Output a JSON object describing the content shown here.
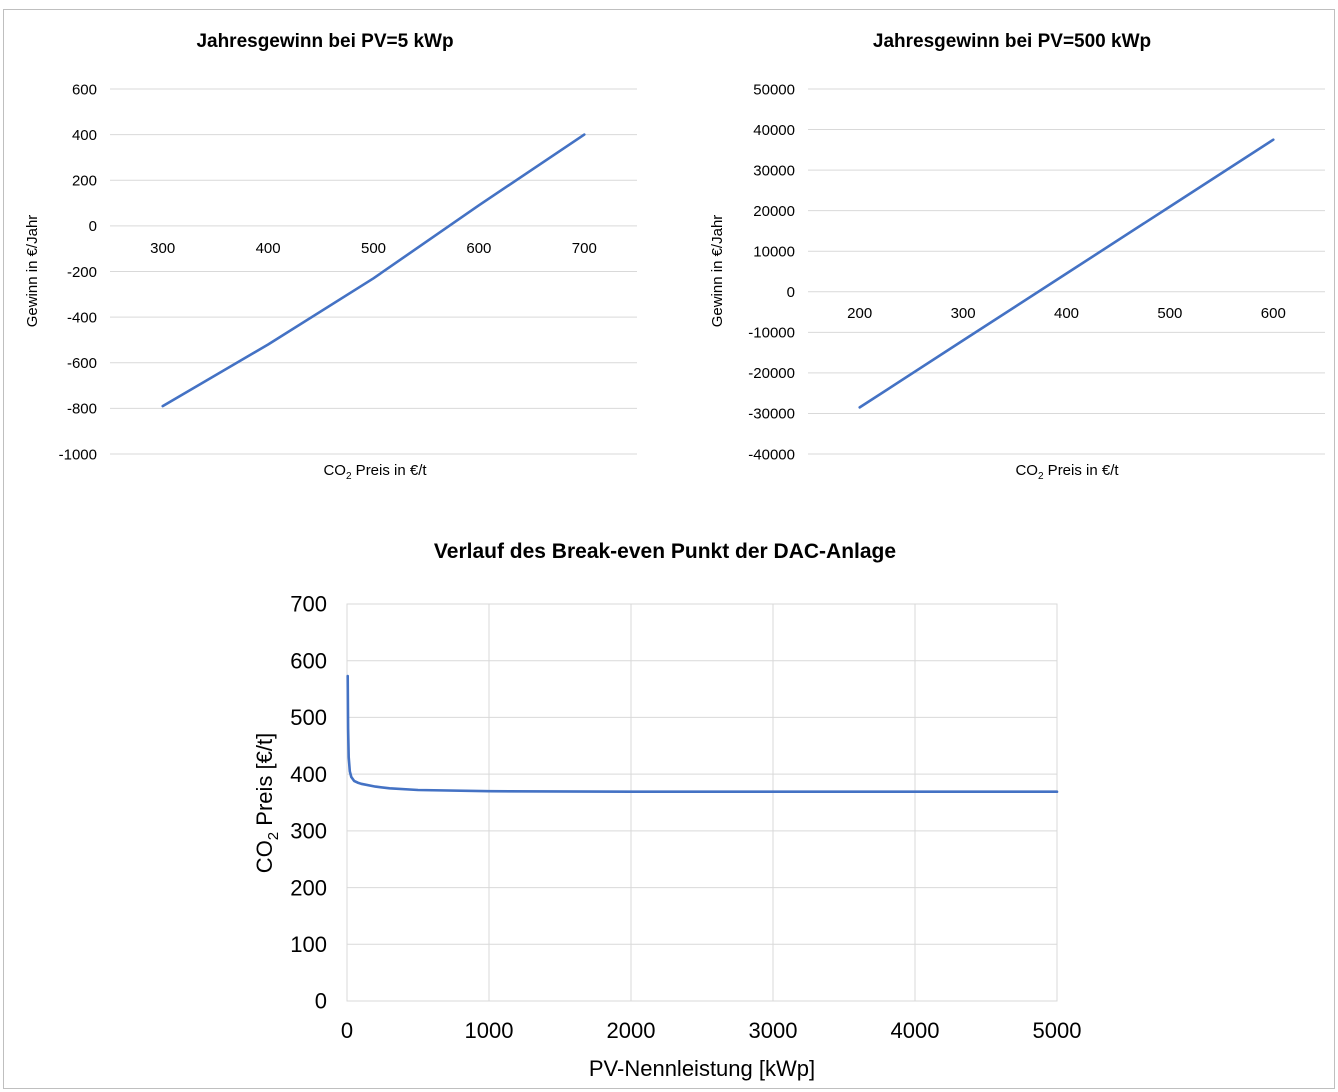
{
  "chart_data": [
    {
      "type": "line",
      "title": "Jahresgewinn bei PV=5 kWp",
      "xlabel_main": "CO",
      "xlabel_sub": "2",
      "xlabel_rest": " Preis in €/t",
      "ylabel": "Gewinn in €/Jahr",
      "x": [
        300,
        400,
        500,
        600,
        700
      ],
      "series": [
        {
          "values": [
            -790,
            -520,
            -230,
            90,
            400
          ]
        }
      ],
      "xlim": [
        250,
        750
      ],
      "ylim": [
        -1000,
        600
      ],
      "yticks": [
        600,
        400,
        200,
        0,
        -200,
        -400,
        -600,
        -800,
        -1000
      ],
      "grid": "horizontal",
      "color": "#4472c4"
    },
    {
      "type": "line",
      "title": "Jahresgewinn bei PV=500 kWp",
      "xlabel_main": "CO",
      "xlabel_sub": "2",
      "xlabel_rest": " Preis in €/t",
      "ylabel": "Gewinn in €/Jahr",
      "x": [
        200,
        300,
        400,
        500,
        600
      ],
      "series": [
        {
          "values": [
            -28500,
            -12000,
            4500,
            21000,
            37500
          ]
        }
      ],
      "xlim": [
        150,
        650
      ],
      "ylim": [
        -40000,
        50000
      ],
      "yticks": [
        50000,
        40000,
        30000,
        20000,
        10000,
        0,
        -10000,
        -20000,
        -30000,
        -40000
      ],
      "grid": "horizontal",
      "color": "#4472c4"
    },
    {
      "type": "line",
      "title": "Verlauf des Break-even Punkt der DAC-Anlage",
      "xlabel": "PV-Nennleistung [kWp]",
      "ylabel_main": "CO",
      "ylabel_sub": "2",
      "ylabel_rest": " Preis [€/t]",
      "x": [
        5,
        8,
        12,
        20,
        30,
        50,
        75,
        100,
        200,
        300,
        500,
        1000,
        2000,
        3000,
        4000,
        5000
      ],
      "series": [
        {
          "values": [
            573,
            480,
            430,
            405,
            395,
            388,
            385,
            383,
            378,
            375,
            372,
            370,
            369,
            369,
            369,
            369
          ]
        }
      ],
      "xlim": [
        0,
        5000
      ],
      "ylim": [
        0,
        700
      ],
      "xticks": [
        0,
        1000,
        2000,
        3000,
        4000,
        5000
      ],
      "yticks": [
        700,
        600,
        500,
        400,
        300,
        200,
        100,
        0
      ],
      "grid": "both",
      "color": "#4472c4"
    }
  ]
}
